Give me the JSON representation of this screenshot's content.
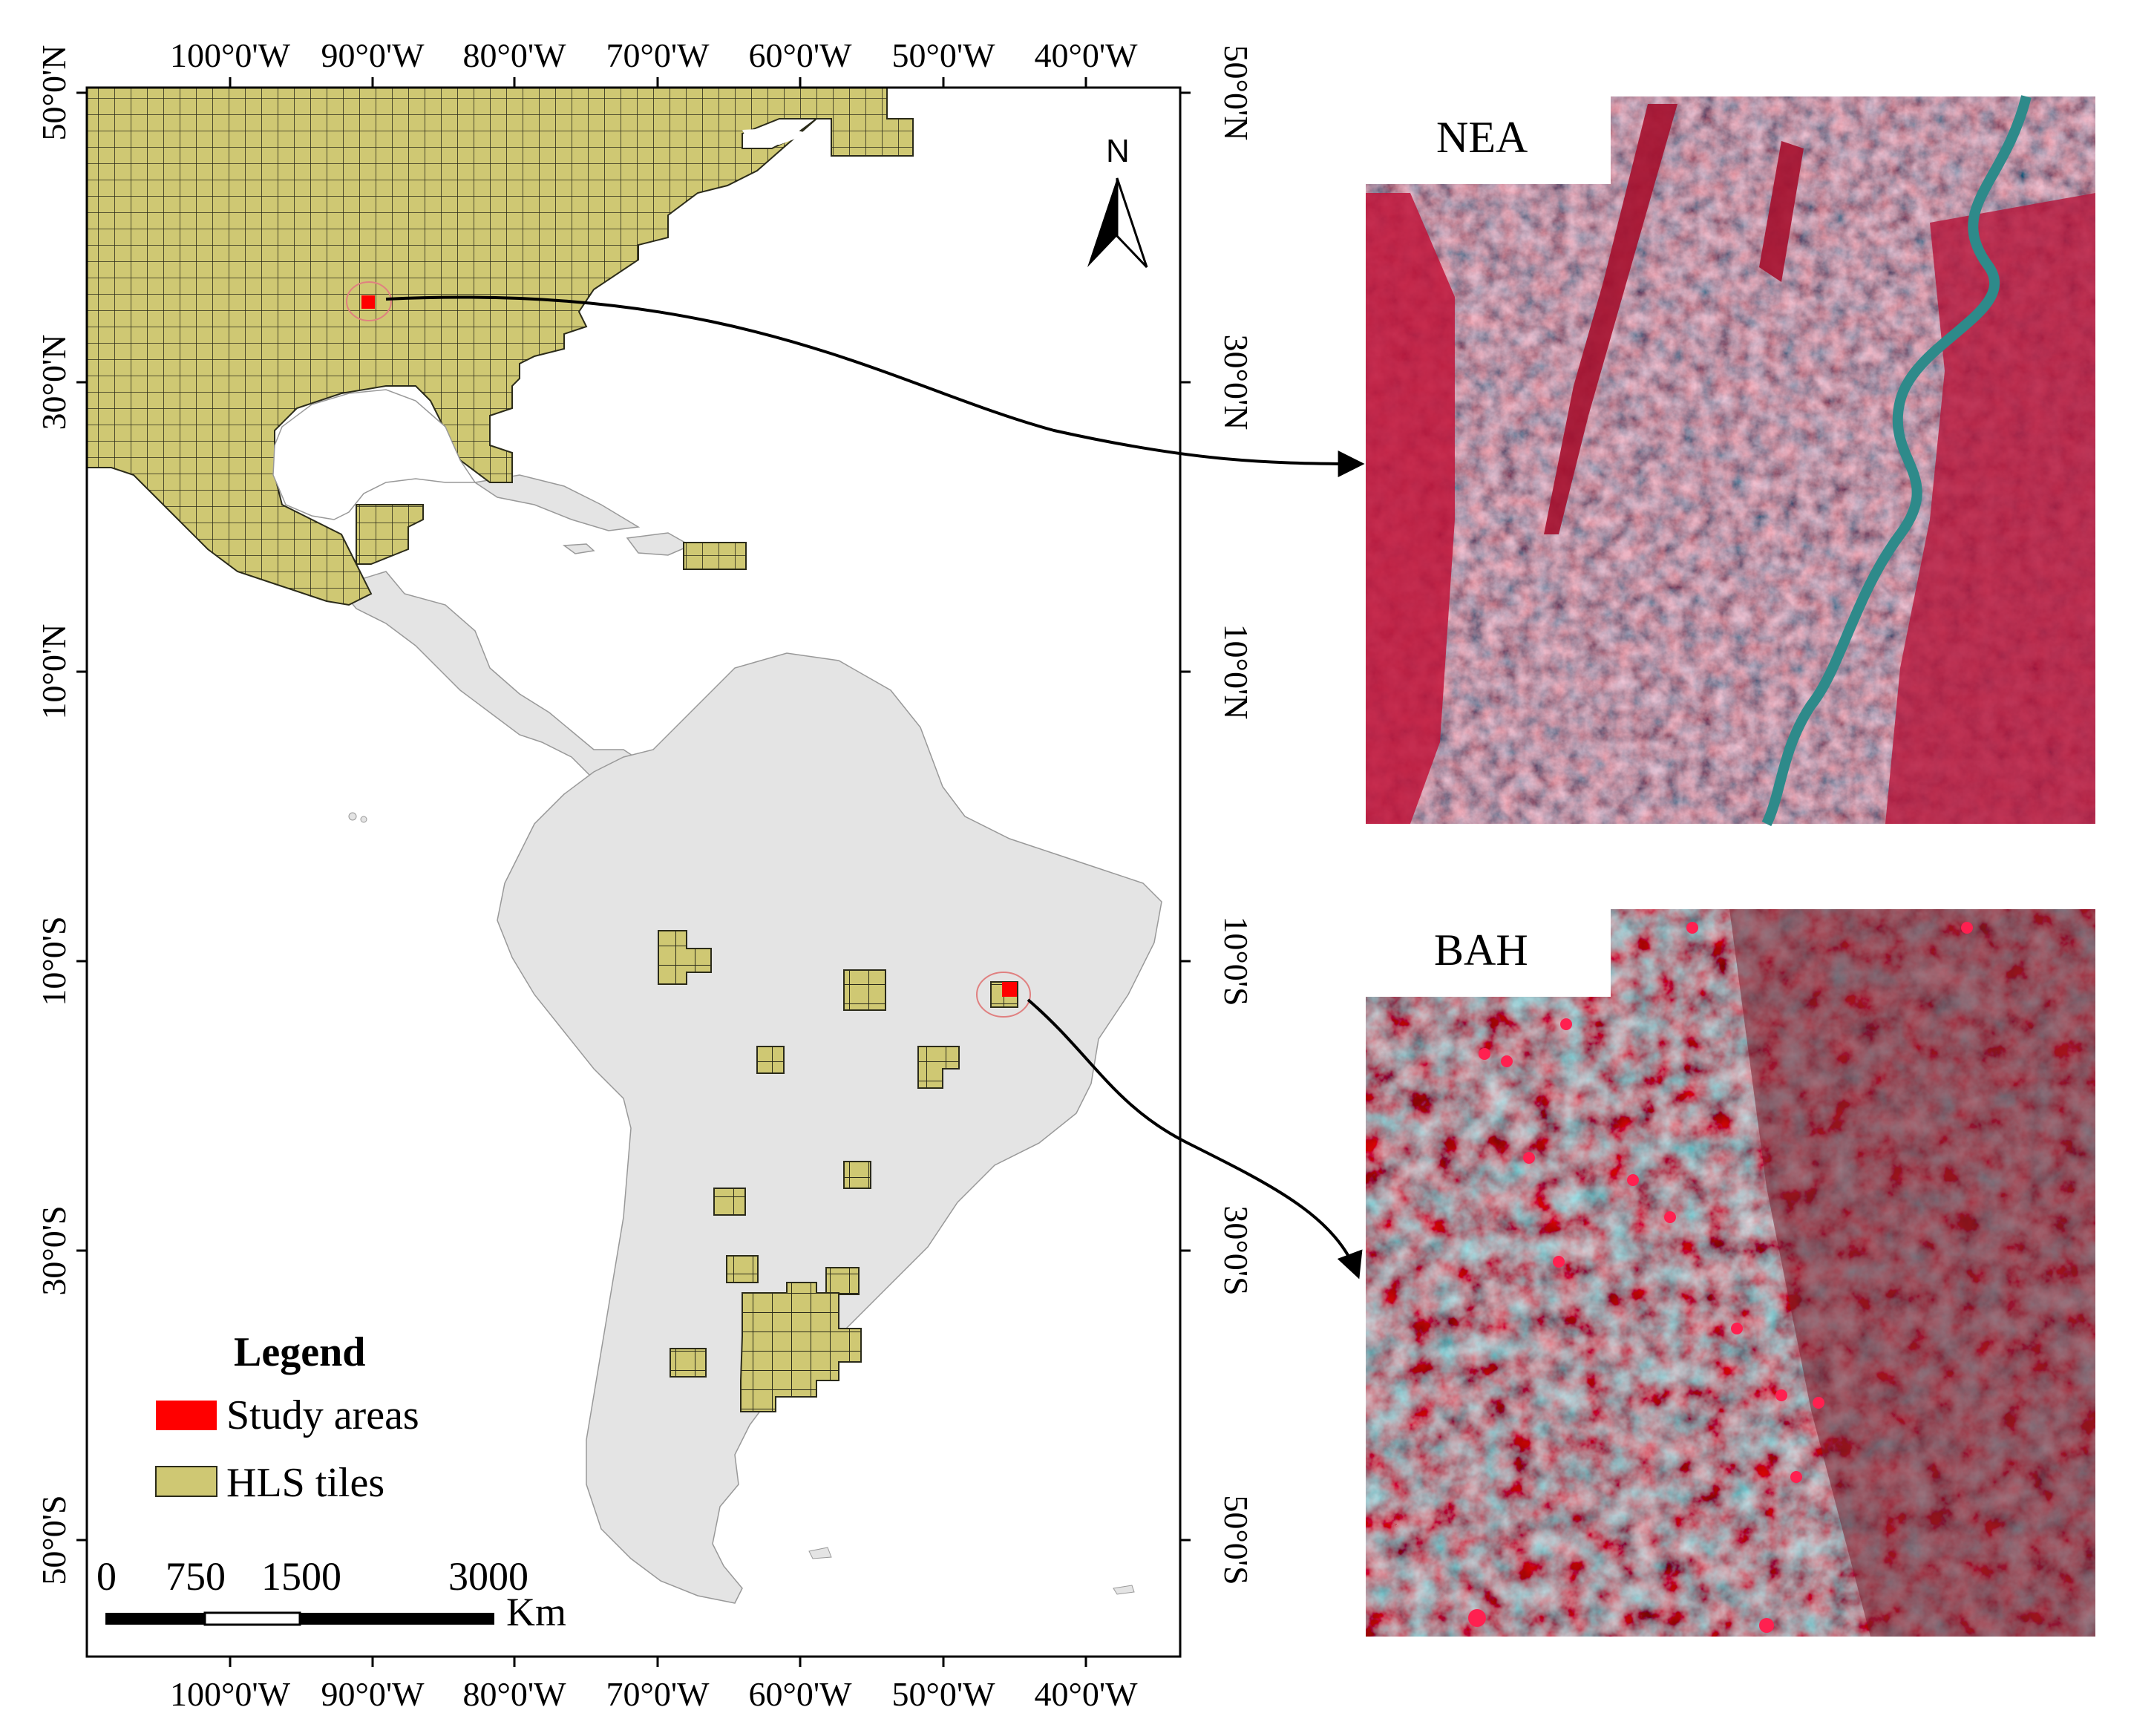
{
  "map": {
    "lon_ticks": [
      "100°0'W",
      "90°0'W",
      "80°0'W",
      "70°0'W",
      "60°0'W",
      "50°0'W",
      "40°0'W"
    ],
    "lat_ticks": [
      "50°0'N",
      "30°0'N",
      "10°0'N",
      "10°0'S",
      "30°0'S",
      "50°0'S"
    ],
    "north_arrow": "N",
    "legend": {
      "title": "Legend",
      "items": [
        {
          "label": "Study areas",
          "color": "#ff0000"
        },
        {
          "label": "HLS tiles",
          "color": "#cfc873"
        }
      ]
    },
    "scale_bar": {
      "ticks": [
        "0",
        "750",
        "1500",
        "3000"
      ],
      "unit": "Km"
    },
    "colors": {
      "land": "#e4e4e4",
      "tile": "#cfc873",
      "tile_edge": "#2b2b1a",
      "study": "#ff0000"
    }
  },
  "panels": [
    {
      "label": "NEA"
    },
    {
      "label": "BAH"
    }
  ]
}
